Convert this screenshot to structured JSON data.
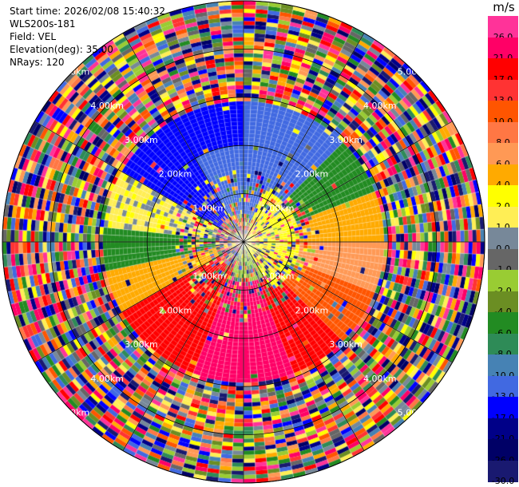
{
  "header": {
    "start_time": "Start time: 2026/02/08 15:40:32",
    "site": "WLS200s-181",
    "field": "Field: VEL",
    "elevation": "Elevation(deg): 35.00",
    "nrays": "NRays: 120"
  },
  "chart_data": {
    "type": "heatmap",
    "subtype": "polar-ppi",
    "field": "VEL",
    "unit": "m/s",
    "nrays": 120,
    "elevation_deg": 35.0,
    "max_range_km": 5.0,
    "range_rings_km": [
      1,
      2,
      3,
      4,
      5
    ],
    "ring_labels": [
      "1.00km",
      "2.00km",
      "3.00km",
      "4.00km",
      "5.00km"
    ],
    "spoke_angles_deg": [
      0,
      30,
      60,
      90,
      120,
      150,
      180,
      210,
      240,
      270,
      300,
      330
    ],
    "colorbar": {
      "label": "m/s",
      "ticks": [
        "26.0",
        "21.0",
        "17.0",
        "13.0",
        "10.0",
        "8.0",
        "6.0",
        "4.0",
        "2.0",
        "1.0",
        "0.0",
        "-1.0",
        "-2.0",
        "-4.0",
        "-6.0",
        "-8.0",
        "-10.0",
        "-13.0",
        "-17.0",
        "-21.0",
        "-26.0",
        "-30.0"
      ],
      "colors": [
        "#ff3399",
        "#ff0066",
        "#ff0000",
        "#ff3333",
        "#ff5500",
        "#ff7744",
        "#ff9955",
        "#ffaa00",
        "#ffff00",
        "#ffee55",
        "#778899",
        "#666666",
        "#99cc33",
        "#6b8e23",
        "#228b22",
        "#2e8b57",
        "#4682b4",
        "#4169e1",
        "#0000ff",
        "#000088",
        "#000066",
        "#191970"
      ]
    },
    "sectors": [
      {
        "az_from": 300,
        "az_to": 360,
        "r_from": 0.6,
        "r_to": 2.9,
        "value": -17
      },
      {
        "az_from": 330,
        "az_to": 360,
        "r_from": 0.6,
        "r_to": 2.0,
        "value": -13
      },
      {
        "az_from": 0,
        "az_to": 45,
        "r_from": 0.6,
        "r_to": 2.9,
        "value": -13
      },
      {
        "az_from": 45,
        "az_to": 70,
        "r_from": 0.6,
        "r_to": 2.9,
        "value": -6
      },
      {
        "az_from": 70,
        "az_to": 90,
        "r_from": 0.6,
        "r_to": 2.9,
        "value": 4
      },
      {
        "az_from": 90,
        "az_to": 110,
        "r_from": 0.6,
        "r_to": 2.9,
        "value": 6
      },
      {
        "az_from": 110,
        "az_to": 135,
        "r_from": 0.6,
        "r_to": 2.9,
        "value": 10
      },
      {
        "az_from": 135,
        "az_to": 240,
        "r_from": 0.6,
        "r_to": 2.9,
        "value": 17
      },
      {
        "az_from": 160,
        "az_to": 200,
        "r_from": 0.6,
        "r_to": 2.9,
        "value": 21
      },
      {
        "az_from": 240,
        "az_to": 258,
        "r_from": 0.6,
        "r_to": 2.9,
        "value": 4
      },
      {
        "az_from": 258,
        "az_to": 276,
        "r_from": 0.6,
        "r_to": 2.9,
        "value": -6
      },
      {
        "az_from": 276,
        "az_to": 300,
        "r_from": 0.6,
        "r_to": 2.9,
        "value": 1
      },
      {
        "az_from": 20,
        "az_to": 150,
        "r_from": 0.0,
        "r_to": 1.2,
        "value": 2
      },
      {
        "az_from": 150,
        "az_to": 200,
        "r_from": 0.0,
        "r_to": 0.8,
        "value": -2
      }
    ]
  }
}
